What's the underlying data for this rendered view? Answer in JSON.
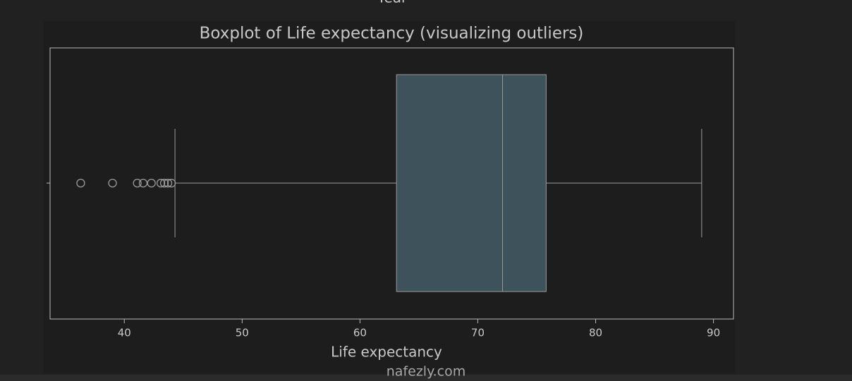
{
  "chart_data": {
    "type": "boxplot",
    "top_text": "Year",
    "title": "Boxplot of Life expectancy  (visualizing outliers)",
    "xlabel": "Life expectancy",
    "watermark": "nafezly.com",
    "color": "#3e525c",
    "boxes": [
      {
        "whislo": 44.3,
        "q1": 63.1,
        "med": 72.1,
        "q3": 75.8,
        "whishi": 89.0,
        "fliers": [
          36.3,
          39.0,
          41.1,
          41.6,
          42.3,
          43.1,
          43.4,
          43.7,
          44.0
        ]
      }
    ],
    "xlim": [
      33.7,
      91.7
    ],
    "xticks": [
      40,
      50,
      60,
      70,
      80,
      90
    ]
  }
}
